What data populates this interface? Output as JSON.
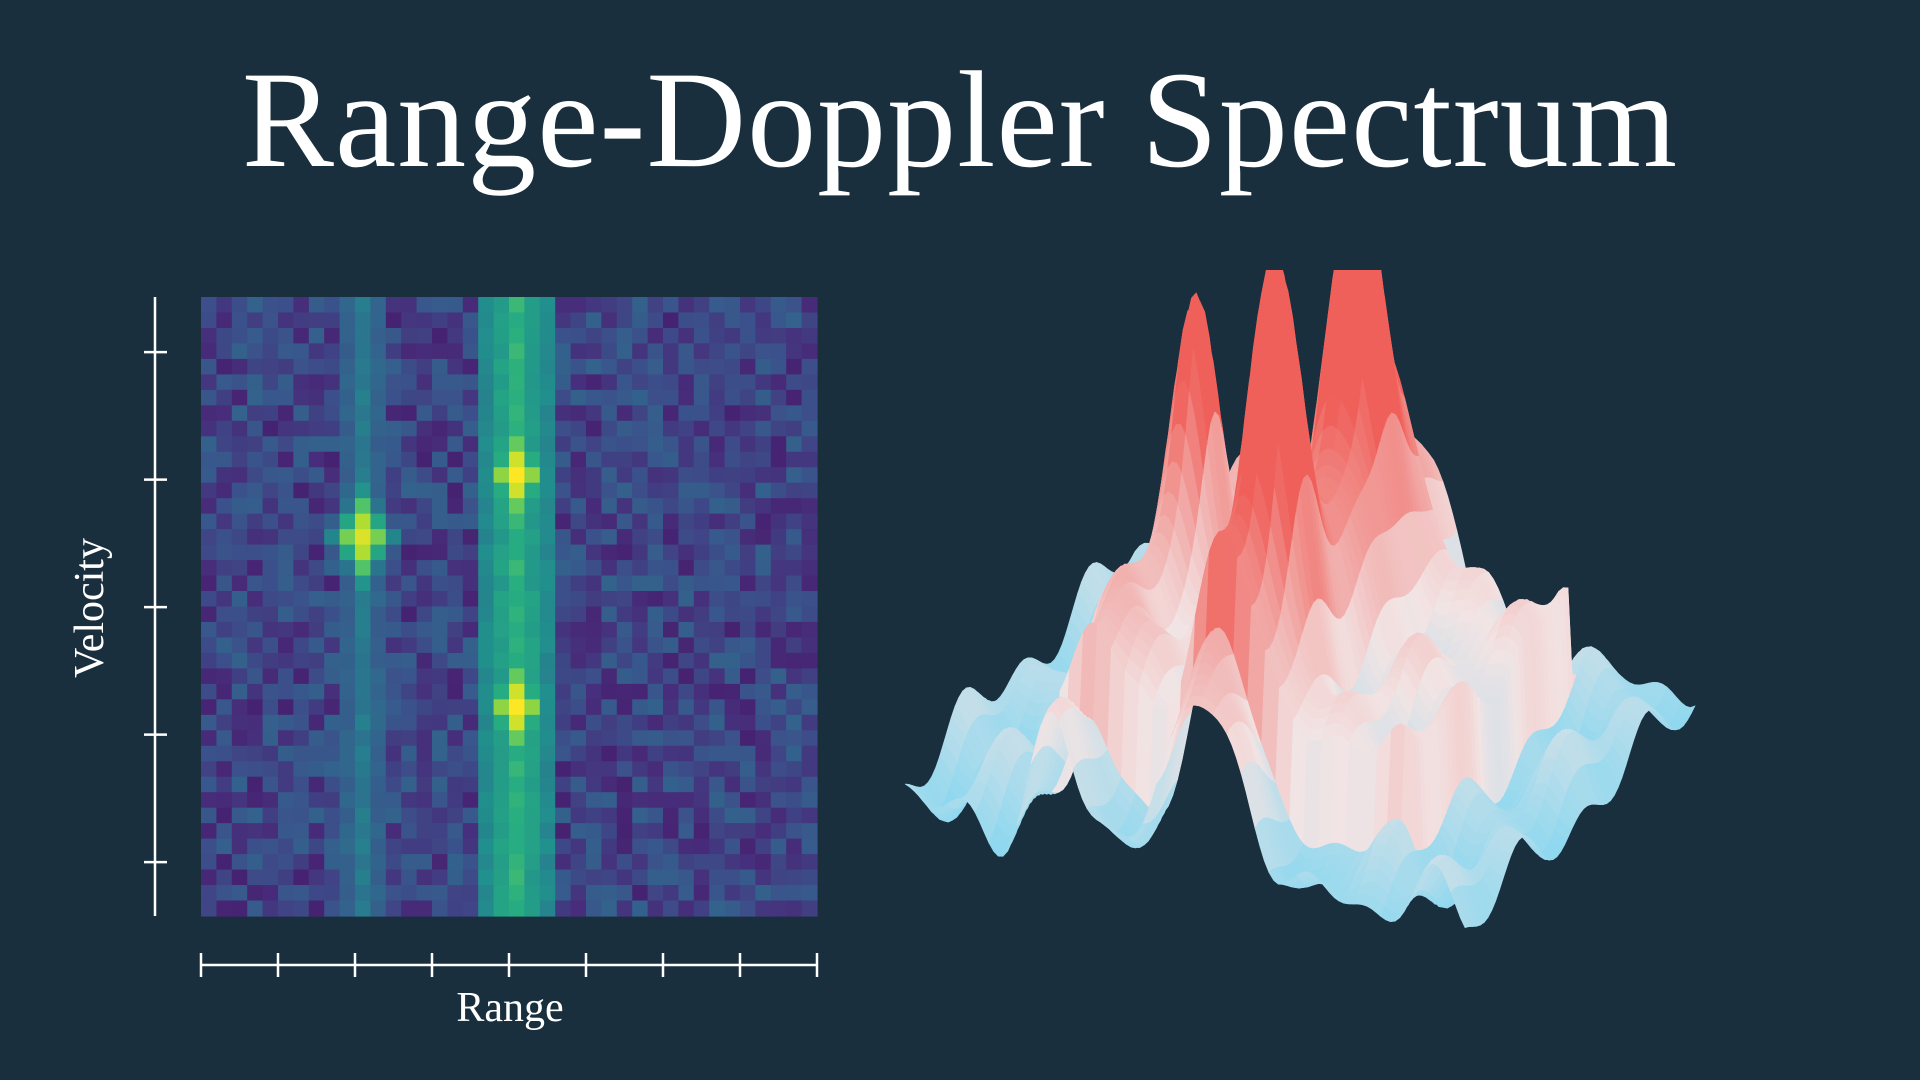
{
  "title": "Range-Doppler Spectrum",
  "chart_data": [
    {
      "type": "heatmap",
      "title": "",
      "xlabel": "Range",
      "ylabel": "Velocity",
      "colormap": "viridis",
      "grid": false,
      "x_tick_count": 9,
      "y_tick_count": 5,
      "tick_labels_shown": false,
      "rows": 40,
      "cols": 40,
      "range_bins_with_signal": [
        {
          "col_start": 18,
          "col_end": 22,
          "description": "strong vertical band",
          "level": 0.62
        },
        {
          "col_start": 9,
          "col_end": 11,
          "description": "weak vertical band",
          "level": 0.38
        }
      ],
      "peaks": [
        {
          "col": 20,
          "row": 11,
          "value": 1.0
        },
        {
          "col": 20,
          "row": 26,
          "value": 1.0
        },
        {
          "col": 10,
          "row": 15,
          "value": 0.95
        }
      ],
      "background_level": 0.1
    },
    {
      "type": "surface",
      "title": "",
      "xlabel": "",
      "ylabel": "",
      "colormap": "coolwarm (light blue to salmon red)",
      "low_color": "#8fd8ef",
      "mid_color": "#f2e4e4",
      "high_color": "#f0605a",
      "description": "3D surface view of the same range-doppler map; tall ridges correspond to the heatmap bands and peaks"
    }
  ],
  "colors": {
    "background": "#1a2f3e",
    "text": "#ffffff",
    "axis": "#ffffff"
  }
}
